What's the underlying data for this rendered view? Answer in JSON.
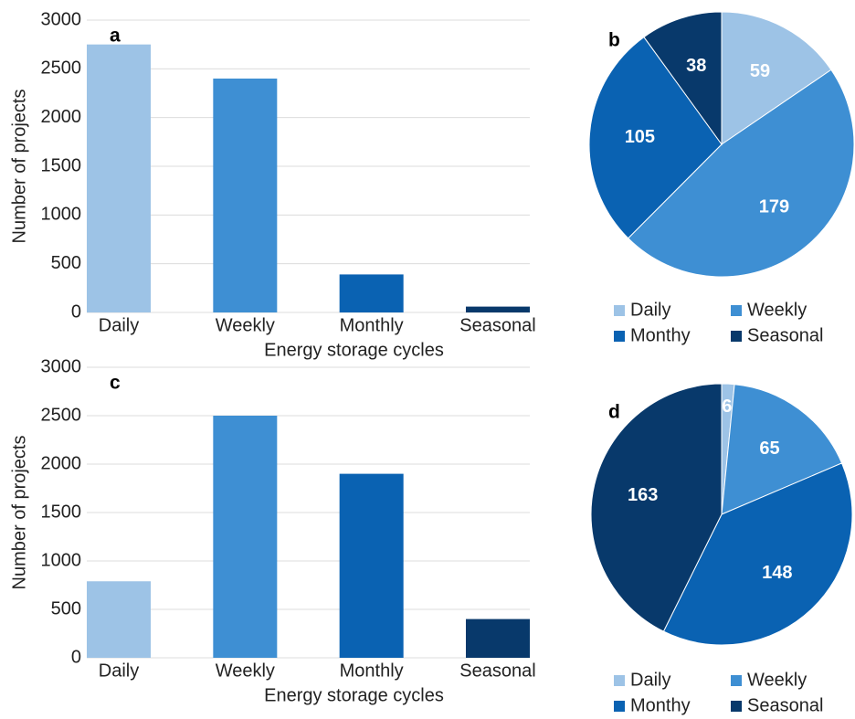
{
  "chart_data": [
    {
      "type": "bar",
      "title": "a",
      "x_label": "Energy storage cycles",
      "y_label": "Number of projects",
      "categories": [
        "Daily",
        "Weekly",
        "Monthly",
        "Seasonal"
      ],
      "values": [
        2750,
        2400,
        390,
        60
      ],
      "colors": [
        "#9dc3e6",
        "#3e8fd3",
        "#0a62b2",
        "#08396b"
      ],
      "ylim": [
        0,
        3000
      ],
      "yticks": [
        0,
        500,
        1000,
        1500,
        2000,
        2500,
        3000
      ],
      "grid": true
    },
    {
      "type": "pie",
      "title": "b",
      "categories": [
        "Daily",
        "Weekly",
        "Monthy",
        "Seasonal"
      ],
      "values": [
        59,
        179,
        105,
        38
      ],
      "colors": [
        "#9dc3e6",
        "#3e8fd3",
        "#0a62b2",
        "#08396b"
      ],
      "legend": "bottom"
    },
    {
      "type": "bar",
      "title": "c",
      "x_label": "Energy storage cycles",
      "y_label": "Number of projects",
      "categories": [
        "Daily",
        "Weekly",
        "Monthly",
        "Seasonal"
      ],
      "values": [
        790,
        2500,
        1900,
        400
      ],
      "colors": [
        "#9dc3e6",
        "#3e8fd3",
        "#0a62b2",
        "#08396b"
      ],
      "ylim": [
        0,
        3000
      ],
      "yticks": [
        0,
        500,
        1000,
        1500,
        2000,
        2500,
        3000
      ],
      "grid": true
    },
    {
      "type": "pie",
      "title": "d",
      "categories": [
        "Daily",
        "Weekly",
        "Monthy",
        "Seasonal"
      ],
      "values": [
        6,
        65,
        148,
        163
      ],
      "colors": [
        "#9dc3e6",
        "#3e8fd3",
        "#0a62b2",
        "#08396b"
      ],
      "legend": "bottom"
    }
  ]
}
